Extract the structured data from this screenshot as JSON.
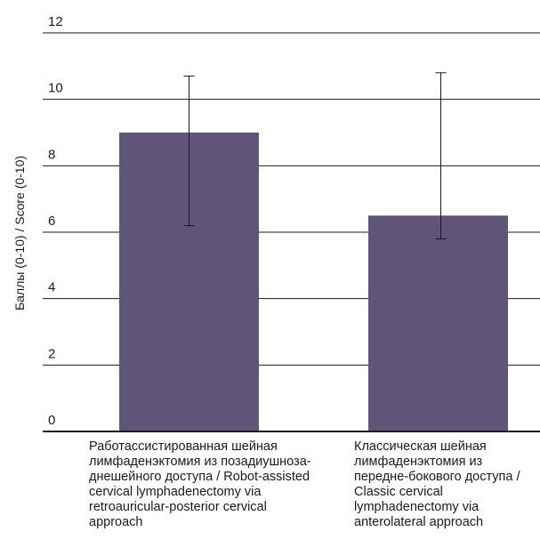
{
  "chart_data": {
    "type": "bar",
    "ylabel": "Баллы (0-10) / Score (0-10)",
    "ylim": [
      0,
      12
    ],
    "yticks": [
      "0",
      "2",
      "4",
      "6",
      "8",
      "10",
      "12"
    ],
    "categories": [
      "Работассистированная шейная\nлимфаденэктомия из позадиушноза-\nднешейного доступа / Robot-assisted\ncervical lymphadenectomy via\nretroauricular-posterior cervical\napproach",
      "Классическая шейная\nлимфаденэктомия из\nпередне-бокового доступа /\nClassic cervical\nlymphadenectomy via\nanterolateral approach"
    ],
    "values": [
      9.0,
      6.5
    ],
    "error_low": [
      6.2,
      5.8
    ],
    "error_high": [
      10.7,
      10.8
    ],
    "bar_color": "#5e5578",
    "grid": true
  }
}
